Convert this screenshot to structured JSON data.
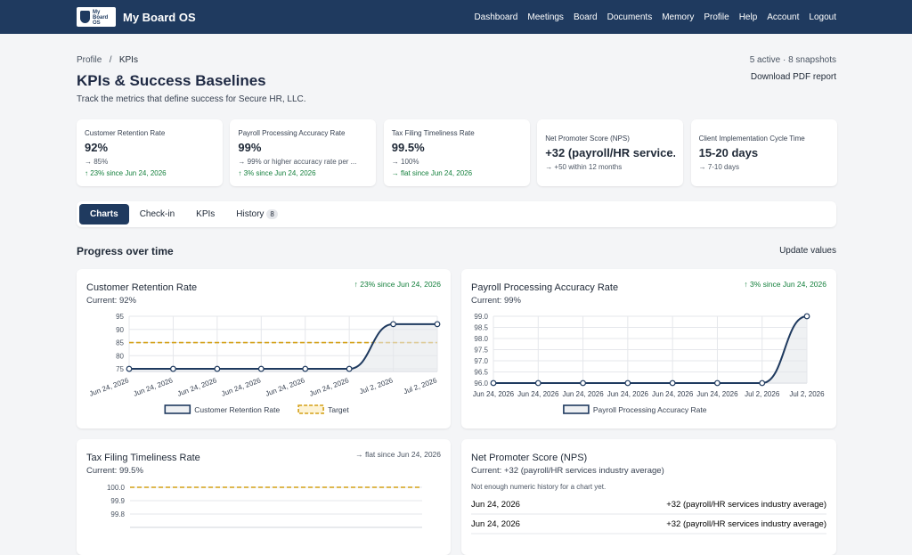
{
  "nav": {
    "logo": [
      "My",
      "Board",
      "OS"
    ],
    "brand": "My Board OS",
    "links": [
      "Dashboard",
      "Meetings",
      "Board",
      "Documents",
      "Memory",
      "Profile",
      "Help",
      "Account",
      "Logout"
    ]
  },
  "breadcrumb": {
    "items": [
      "Profile",
      "KPIs"
    ],
    "separator": "/"
  },
  "header": {
    "title": "KPIs & Success Baselines",
    "subtitle": "Track the metrics that define success for Secure HR, LLC.",
    "meta": "5 active · 8 snapshots",
    "action": "Download PDF report"
  },
  "kpi_cards": [
    {
      "label": "Customer Retention Rate",
      "value": "92%",
      "target": "→ 85%",
      "trend": "↑ 23% since Jun 24, 2026"
    },
    {
      "label": "Payroll Processing Accuracy Rate",
      "value": "99%",
      "target": "→ 99% or higher accuracy rate per ...",
      "trend": "↑ 3% since Jun 24, 2026"
    },
    {
      "label": "Tax Filing Timeliness Rate",
      "value": "99.5%",
      "target": "→ 100%",
      "trend": "→ flat since Jun 24, 2026"
    },
    {
      "label": "Net Promoter Score (NPS)",
      "value": "+32 (payroll/HR service...",
      "target": "→ +50 within 12 months"
    },
    {
      "label": "Client Implementation Cycle Time",
      "value": "15-20 days",
      "target": "→ 7-10 days"
    }
  ],
  "tabs": [
    {
      "label": "Charts"
    },
    {
      "label": "Check-in"
    },
    {
      "label": "KPIs"
    },
    {
      "label": "History",
      "badge": 8
    }
  ],
  "section": {
    "title": "Progress over time",
    "action": "Update values"
  },
  "chart_data": [
    {
      "type": "line",
      "title": "Customer Retention Rate",
      "current": "Current: 92%",
      "trend": "↑ 23% since Jun 24, 2026",
      "categories": [
        "Jun 24, 2026",
        "Jun 24, 2026",
        "Jun 24, 2026",
        "Jun 24, 2026",
        "Jun 24, 2026",
        "Jun 24, 2026",
        "Jul 2, 2026",
        "Jul 2, 2026"
      ],
      "series": [
        {
          "name": "Customer Retention Rate",
          "color": "#1f3a5f",
          "values": [
            75,
            75,
            75,
            75,
            75,
            75,
            92,
            92
          ]
        }
      ],
      "target": {
        "name": "Target",
        "value": 85,
        "color": "#d4a017"
      },
      "ylim": [
        74,
        95
      ],
      "yticks": [
        75,
        80,
        85,
        90,
        95
      ],
      "rotate_labels": true
    },
    {
      "type": "line",
      "title": "Payroll Processing Accuracy Rate",
      "current": "Current: 99%",
      "trend": "↑ 3% since Jun 24, 2026",
      "categories": [
        "Jun 24, 2026",
        "Jun 24, 2026",
        "Jun 24, 2026",
        "Jun 24, 2026",
        "Jun 24, 2026",
        "Jun 24, 2026",
        "Jul 2, 2026",
        "Jul 2, 2026"
      ],
      "series": [
        {
          "name": "Payroll Processing Accuracy Rate",
          "color": "#1f3a5f",
          "values": [
            96,
            96,
            96,
            96,
            96,
            96,
            96,
            99
          ]
        }
      ],
      "ylim": [
        96,
        99
      ],
      "yticks": [
        {
          "value": 96,
          "label": "96.0"
        },
        96.5,
        {
          "value": 97,
          "label": "97.0"
        },
        97.5,
        {
          "value": 98,
          "label": "98.0"
        },
        98.5,
        {
          "value": 99,
          "label": "99.0"
        }
      ],
      "rotate_labels": false
    },
    {
      "type": "line",
      "title": "Tax Filing Timeliness Rate",
      "current": "Current: 99.5%",
      "trend": "→ flat since Jun 24, 2026",
      "target": {
        "value": 100,
        "color": "#d4a017"
      },
      "ylim": [
        99.7,
        100
      ],
      "yticks": [
        {
          "value": 100,
          "label": "100.0"
        },
        99.9,
        99.8
      ]
    },
    {
      "type": "list",
      "title": "Net Promoter Score (NPS)",
      "current": "Current: +32 (payroll/HR services industry average)",
      "note": "Not enough numeric history for a chart yet.",
      "rows": [
        {
          "date": "Jun 24, 2026",
          "value": "+32 (payroll/HR services industry average)"
        },
        {
          "date": "Jun 24, 2026",
          "value": "+32 (payroll/HR services industry average)"
        }
      ]
    }
  ]
}
